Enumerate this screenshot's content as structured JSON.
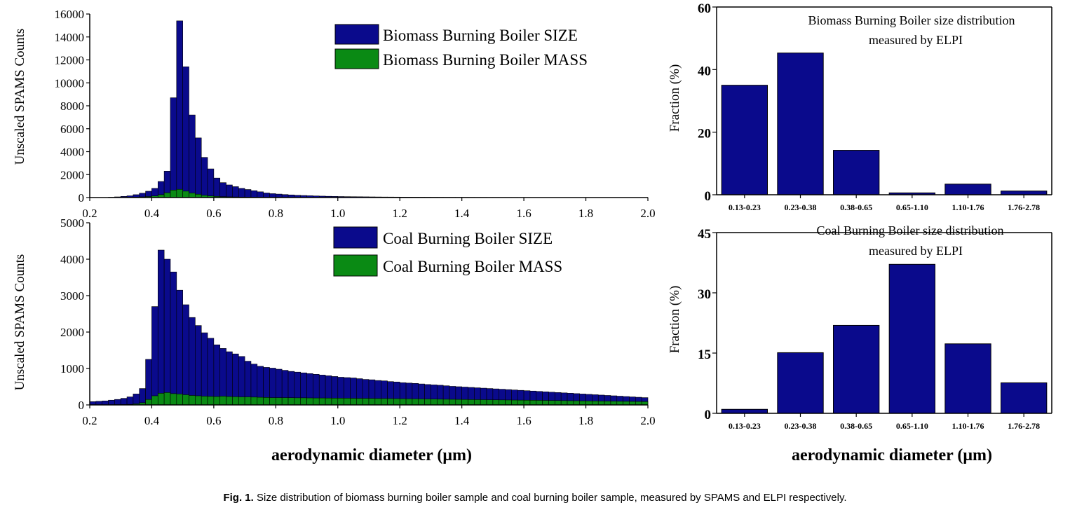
{
  "caption": {
    "label": "Fig. 1.",
    "text": "Size distribution of biomass burning boiler sample and coal burning boiler sample, measured by SPAMS and ELPI respectively."
  },
  "colors": {
    "size": "#0a0a8c",
    "mass": "#0a8a14",
    "bar_right": "#0a0a8c"
  },
  "chart_data": [
    {
      "id": "biomass-spams",
      "type": "bar",
      "ylabel": "Unscaled SPAMS Counts",
      "xlim": [
        0.2,
        2.0
      ],
      "ylim": [
        0,
        16000
      ],
      "xticks": [
        "0.2",
        "0.4",
        "0.6",
        "0.8",
        "1.0",
        "1.2",
        "1.4",
        "1.6",
        "1.8",
        "2.0"
      ],
      "yticks": [
        "0",
        "2000",
        "4000",
        "6000",
        "8000",
        "10000",
        "12000",
        "14000",
        "16000"
      ],
      "bin_start": 0.2,
      "bin_width": 0.02,
      "series": [
        {
          "name": "Biomass Burning Boiler SIZE",
          "values": [
            0,
            0,
            0,
            30,
            60,
            100,
            150,
            250,
            380,
            550,
            800,
            1400,
            2300,
            8700,
            15400,
            11400,
            7200,
            5200,
            3500,
            2500,
            1700,
            1300,
            1100,
            950,
            800,
            700,
            600,
            500,
            400,
            340,
            300,
            260,
            230,
            200,
            180,
            160,
            140,
            125,
            110,
            100,
            90,
            80,
            75,
            70,
            65,
            60,
            55,
            50,
            48,
            45,
            42,
            40,
            38,
            36,
            34,
            32,
            30,
            28,
            26,
            25,
            24,
            22,
            20,
            20,
            18,
            18,
            16,
            16,
            15,
            14,
            14,
            12,
            12,
            12,
            10,
            10,
            10,
            10,
            10,
            8,
            8,
            8,
            8,
            8,
            8,
            6,
            6,
            6,
            6,
            6
          ]
        },
        {
          "name": "Biomass Burning Boiler MASS",
          "values": [
            0,
            0,
            0,
            5,
            10,
            15,
            25,
            40,
            60,
            90,
            140,
            250,
            420,
            650,
            720,
            560,
            400,
            290,
            200,
            140,
            100,
            80,
            65,
            55,
            45,
            40,
            35,
            30,
            25,
            22,
            20,
            18,
            16,
            14,
            12,
            11,
            10,
            9,
            8,
            7,
            6,
            6,
            5,
            5,
            5,
            4,
            4,
            4,
            4,
            3,
            3,
            3,
            3,
            3,
            3,
            3,
            2,
            2,
            2,
            2,
            2,
            2,
            2,
            2,
            2,
            2,
            2,
            2,
            2,
            2,
            1,
            1,
            1,
            1,
            1,
            1,
            1,
            1,
            1,
            1,
            1,
            1,
            1,
            1,
            1,
            1,
            1,
            1,
            1,
            1
          ]
        }
      ]
    },
    {
      "id": "biomass-elpi",
      "type": "bar",
      "title": "Biomass Burning Boiler size distribution",
      "subtitle": "measured by ELPI",
      "ylabel": "Fraction (%)",
      "ylim": [
        0,
        60
      ],
      "yticks": [
        "0",
        "20",
        "40",
        "60"
      ],
      "categories": [
        "0.13-0.23",
        "0.23-0.38",
        "0.38-0.65",
        "0.65-1.10",
        "1.10-1.76",
        "1.76-2.78"
      ],
      "values": [
        35,
        45.3,
        14.2,
        0.6,
        3.4,
        1.2
      ]
    },
    {
      "id": "coal-spams",
      "type": "bar",
      "ylabel": "Unscaled SPAMS Counts",
      "xlabel": "aerodynamic diameter (μm)",
      "xlim": [
        0.2,
        2.0
      ],
      "ylim": [
        0,
        5000
      ],
      "xticks": [
        "0.2",
        "0.4",
        "0.6",
        "0.8",
        "1.0",
        "1.2",
        "1.4",
        "1.6",
        "1.8",
        "2.0"
      ],
      "yticks": [
        "0",
        "1000",
        "2000",
        "3000",
        "4000",
        "5000"
      ],
      "bin_start": 0.2,
      "bin_width": 0.02,
      "series": [
        {
          "name": "Coal Burning Boiler SIZE",
          "values": [
            90,
            100,
            110,
            130,
            150,
            180,
            220,
            300,
            450,
            1250,
            2700,
            4250,
            4000,
            3650,
            3150,
            2750,
            2400,
            2180,
            1980,
            1830,
            1650,
            1550,
            1460,
            1400,
            1330,
            1200,
            1120,
            1060,
            1030,
            1010,
            980,
            950,
            920,
            900,
            880,
            860,
            840,
            820,
            800,
            780,
            760,
            750,
            740,
            720,
            700,
            690,
            670,
            660,
            640,
            630,
            610,
            600,
            590,
            575,
            560,
            550,
            540,
            525,
            510,
            500,
            490,
            480,
            470,
            460,
            450,
            440,
            430,
            420,
            410,
            400,
            390,
            380,
            370,
            360,
            350,
            340,
            330,
            320,
            310,
            300,
            290,
            280,
            270,
            260,
            250,
            240,
            230,
            220,
            210,
            200
          ]
        },
        {
          "name": "Coal Burning Boiler MASS",
          "values": [
            5,
            5,
            5,
            6,
            8,
            10,
            15,
            30,
            60,
            150,
            250,
            320,
            340,
            310,
            300,
            280,
            260,
            250,
            240,
            235,
            230,
            240,
            230,
            225,
            220,
            220,
            215,
            210,
            205,
            200,
            200,
            200,
            198,
            195,
            195,
            192,
            190,
            190,
            188,
            186,
            185,
            184,
            182,
            180,
            180,
            178,
            176,
            175,
            174,
            172,
            170,
            168,
            166,
            164,
            162,
            160,
            158,
            156,
            154,
            152,
            150,
            148,
            146,
            144,
            142,
            140,
            138,
            136,
            134,
            132,
            130,
            128,
            126,
            124,
            122,
            120,
            118,
            116,
            114,
            112,
            110,
            108,
            106,
            104,
            102,
            100,
            98,
            96,
            94,
            92
          ]
        }
      ]
    },
    {
      "id": "coal-elpi",
      "type": "bar",
      "title": "Coal Burning Boiler size distribution",
      "subtitle": "measured by ELPI",
      "ylabel": "Fraction (%)",
      "xlabel": "aerodynamic diameter (μm)",
      "ylim": [
        0,
        45
      ],
      "yticks": [
        "0",
        "15",
        "30",
        "45"
      ],
      "categories": [
        "0.13-0.23",
        "0.23-0.38",
        "0.38-0.65",
        "0.65-1.10",
        "1.10-1.76",
        "1.76-2.78"
      ],
      "values": [
        1,
        15.1,
        21.9,
        37.1,
        17.3,
        7.6
      ]
    }
  ]
}
